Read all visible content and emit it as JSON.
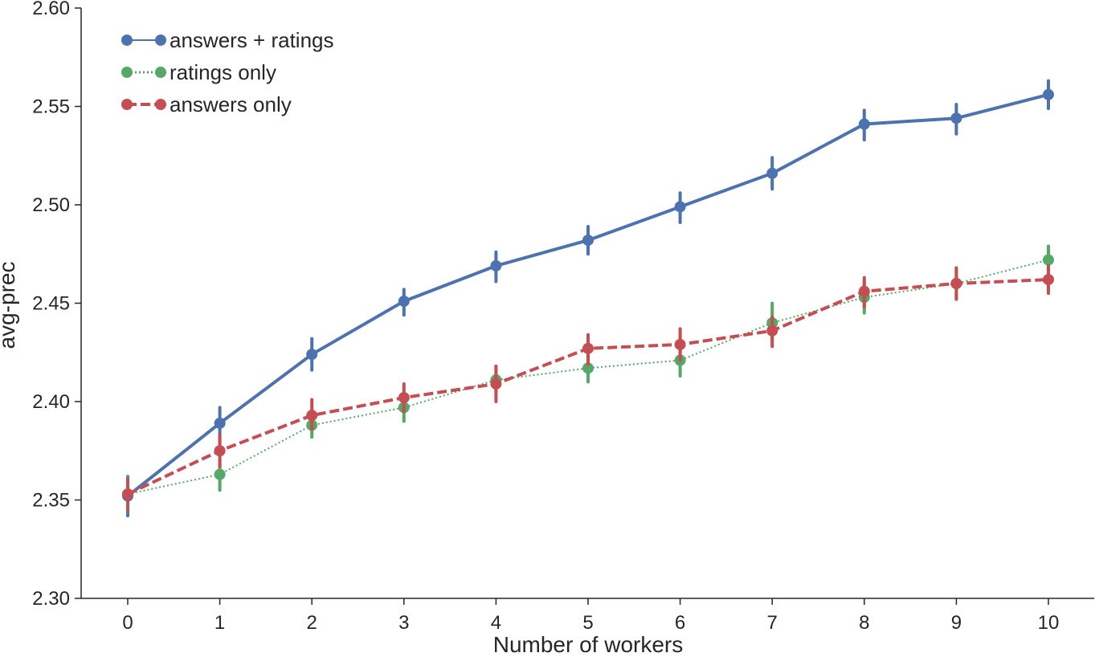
{
  "chart_data": {
    "type": "line",
    "title": "",
    "xlabel": "Number of workers",
    "ylabel": "avg-prec",
    "x": [
      0,
      1,
      2,
      3,
      4,
      5,
      6,
      7,
      8,
      9,
      10
    ],
    "xticks": [
      "0",
      "1",
      "2",
      "3",
      "4",
      "5",
      "6",
      "7",
      "8",
      "9",
      "10"
    ],
    "yticks": [
      "2.30",
      "2.35",
      "2.40",
      "2.45",
      "2.50",
      "2.55",
      "2.60"
    ],
    "ylim": [
      2.3,
      2.6
    ],
    "xlim": [
      -0.5,
      10.5
    ],
    "grid": false,
    "legend_position": "top-left",
    "series": [
      {
        "name": "answers + ratings",
        "color": "#4c72b0",
        "line_style": "solid",
        "values": [
          2.352,
          2.389,
          2.424,
          2.451,
          2.469,
          2.482,
          2.499,
          2.516,
          2.541,
          2.544,
          2.556
        ],
        "err_low": [
          2.342,
          2.38,
          2.416,
          2.444,
          2.461,
          2.475,
          2.491,
          2.508,
          2.533,
          2.536,
          2.549
        ],
        "err_high": [
          2.362,
          2.397,
          2.432,
          2.457,
          2.476,
          2.489,
          2.506,
          2.524,
          2.548,
          2.551,
          2.563
        ]
      },
      {
        "name": "ratings only",
        "color": "#55a868",
        "line_style": "dotted",
        "values": [
          2.353,
          2.363,
          2.388,
          2.397,
          2.411,
          2.417,
          2.421,
          2.44,
          2.453,
          2.46,
          2.472
        ],
        "err_low": [
          2.345,
          2.355,
          2.382,
          2.39,
          2.405,
          2.41,
          2.413,
          2.431,
          2.445,
          2.452,
          2.465
        ],
        "err_high": [
          2.362,
          2.37,
          2.394,
          2.404,
          2.418,
          2.425,
          2.428,
          2.45,
          2.461,
          2.467,
          2.479
        ]
      },
      {
        "name": "answers only",
        "color": "#c44e52",
        "line_style": "dashed",
        "values": [
          2.353,
          2.375,
          2.393,
          2.402,
          2.409,
          2.427,
          2.429,
          2.436,
          2.456,
          2.46,
          2.462
        ],
        "err_low": [
          2.345,
          2.367,
          2.386,
          2.395,
          2.4,
          2.419,
          2.421,
          2.428,
          2.448,
          2.452,
          2.455
        ],
        "err_high": [
          2.361,
          2.383,
          2.401,
          2.409,
          2.418,
          2.434,
          2.437,
          2.443,
          2.463,
          2.468,
          2.469
        ]
      }
    ]
  }
}
